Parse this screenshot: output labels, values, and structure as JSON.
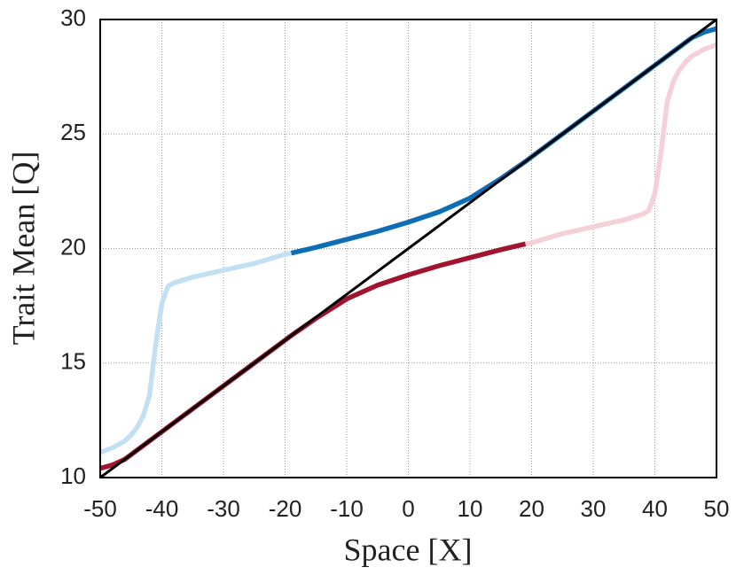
{
  "chart_data": {
    "type": "line",
    "xlabel": "Space [X]",
    "ylabel": "Trait Mean [Q]",
    "x": [
      -50,
      -48,
      -46,
      -45,
      -44,
      -43,
      -42,
      -41,
      -40,
      -39,
      -38,
      -35,
      -30,
      -25,
      -20,
      -19,
      -15,
      -10,
      -5,
      0,
      5,
      10,
      15,
      19,
      20,
      25,
      30,
      35,
      38,
      39,
      40,
      41,
      42,
      43,
      44,
      45,
      46,
      48,
      50
    ],
    "series": [
      {
        "color": "#c3e0f3",
        "values": [
          11.1,
          11.3,
          11.6,
          11.85,
          12.2,
          12.7,
          13.6,
          15.8,
          17.6,
          18.35,
          18.5,
          18.75,
          19.05,
          19.35,
          19.75,
          19.8,
          null,
          null,
          null,
          null,
          null,
          null,
          null,
          null,
          null,
          null,
          null,
          null,
          null,
          null,
          null,
          null,
          null,
          null,
          null,
          null,
          null,
          null,
          null
        ]
      },
      {
        "color": "#f5d0d8",
        "values": [
          null,
          null,
          null,
          null,
          null,
          null,
          null,
          null,
          null,
          null,
          null,
          null,
          null,
          null,
          null,
          null,
          null,
          null,
          null,
          null,
          null,
          null,
          null,
          20.2,
          20.25,
          20.65,
          20.95,
          21.25,
          21.5,
          21.65,
          22.4,
          24.2,
          26.4,
          27.3,
          27.8,
          28.15,
          28.4,
          28.7,
          28.9
        ]
      },
      {
        "color": "#0e6eb5",
        "values": [
          null,
          null,
          null,
          null,
          null,
          null,
          null,
          null,
          null,
          null,
          null,
          null,
          null,
          null,
          null,
          19.8,
          20.05,
          20.4,
          20.75,
          21.15,
          21.6,
          22.2,
          23.05,
          23.8,
          24.0,
          25.0,
          26.0,
          27.0,
          27.6,
          27.8,
          28.0,
          28.2,
          28.4,
          28.6,
          28.8,
          29.0,
          29.2,
          29.45,
          29.6
        ]
      },
      {
        "color": "#a1142f",
        "values": [
          10.4,
          10.55,
          10.8,
          11.0,
          11.2,
          11.4,
          11.6,
          11.8,
          12.0,
          12.2,
          12.4,
          13.0,
          14.0,
          15.0,
          16.0,
          16.2,
          16.95,
          17.8,
          18.4,
          18.85,
          19.25,
          19.6,
          19.95,
          20.2,
          null,
          null,
          null,
          null,
          null,
          null,
          null,
          null,
          null,
          null,
          null,
          null,
          null,
          null,
          null
        ]
      },
      {
        "color": "#000000",
        "values": [
          10,
          10.4,
          10.8,
          11,
          11.2,
          11.4,
          11.6,
          11.8,
          12,
          12.2,
          12.4,
          13,
          14,
          15,
          16,
          16.2,
          17,
          18,
          19,
          20,
          21,
          22,
          23,
          23.8,
          24,
          25,
          26,
          27,
          27.6,
          27.8,
          28,
          28.2,
          28.4,
          28.6,
          28.8,
          29,
          29.2,
          29.6,
          30
        ]
      }
    ],
    "xlim": [
      -50,
      50
    ],
    "xticks": [
      -50,
      -40,
      -30,
      -20,
      -10,
      0,
      10,
      20,
      30,
      40,
      50
    ],
    "ylim": [
      10,
      30
    ],
    "yticks": [
      10,
      15,
      20,
      25,
      30
    ],
    "grid": true
  }
}
